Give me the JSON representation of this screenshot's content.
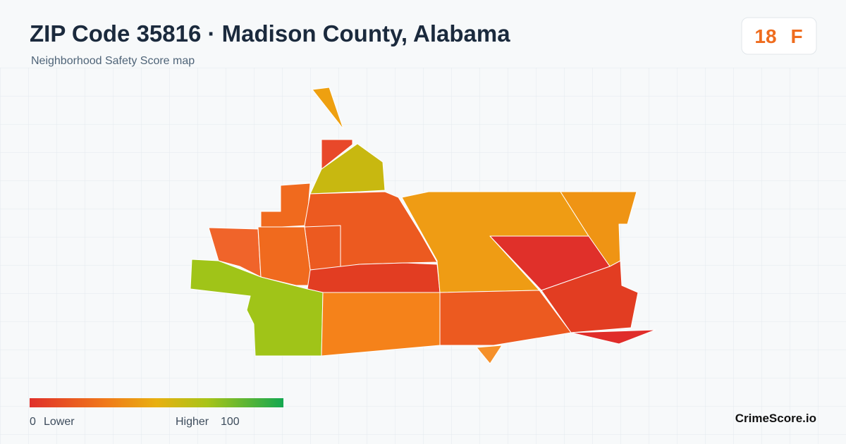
{
  "header": {
    "title": "ZIP Code 35816 · Madison County, Alabama",
    "subtitle": "Neighborhood Safety Score map"
  },
  "badge": {
    "score": "18",
    "grade": "F"
  },
  "legend": {
    "min": "0",
    "min_label": "Lower",
    "max_label": "Higher",
    "max": "100"
  },
  "brand": "CrimeScore.io"
}
